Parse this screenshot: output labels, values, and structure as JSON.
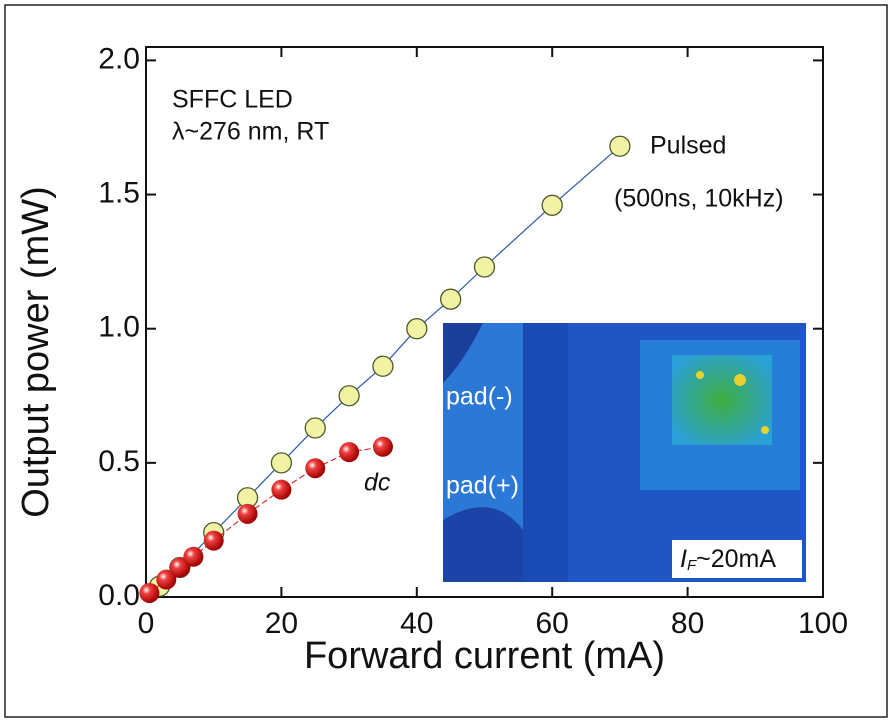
{
  "chart_data": {
    "type": "line",
    "xlabel": "Forward current (mA)",
    "ylabel": "Output power (mW)",
    "xlim": [
      0,
      100
    ],
    "ylim": [
      0,
      2.05
    ],
    "xticks": [
      0,
      20,
      40,
      60,
      80,
      100
    ],
    "yticks": [
      {
        "value": 0,
        "label": "0.0"
      },
      0.5,
      {
        "value": 1,
        "label": "1.0"
      },
      1.5,
      {
        "value": 2,
        "label": "2.0"
      }
    ],
    "annotations": [
      "SFFC LED",
      "λ~276 nm,  RT"
    ],
    "series": [
      {
        "name": "Pulsed",
        "note": "(500ns, 10kHz)",
        "color": "#f2f2a4",
        "line_color": "#2a5aa8",
        "x": [
          2,
          5,
          10,
          15,
          20,
          25,
          30,
          35,
          40,
          45,
          50,
          60,
          70
        ],
        "values": [
          0.04,
          0.11,
          0.24,
          0.37,
          0.5,
          0.63,
          0.75,
          0.86,
          1.0,
          1.11,
          1.23,
          1.46,
          1.68
        ]
      },
      {
        "name": "dc",
        "color": "#e02020",
        "line_color": "#d03030",
        "x": [
          0.5,
          3,
          5,
          7,
          10,
          15,
          20,
          25,
          30,
          35
        ],
        "values": [
          0.015,
          0.065,
          0.11,
          0.15,
          0.21,
          0.31,
          0.4,
          0.48,
          0.54,
          0.56
        ]
      }
    ],
    "inset": {
      "labels": [
        "pad(-)",
        "pad(+)"
      ],
      "current_symbol": "I",
      "current_subscript": "F",
      "current_value": "~20mA"
    }
  }
}
